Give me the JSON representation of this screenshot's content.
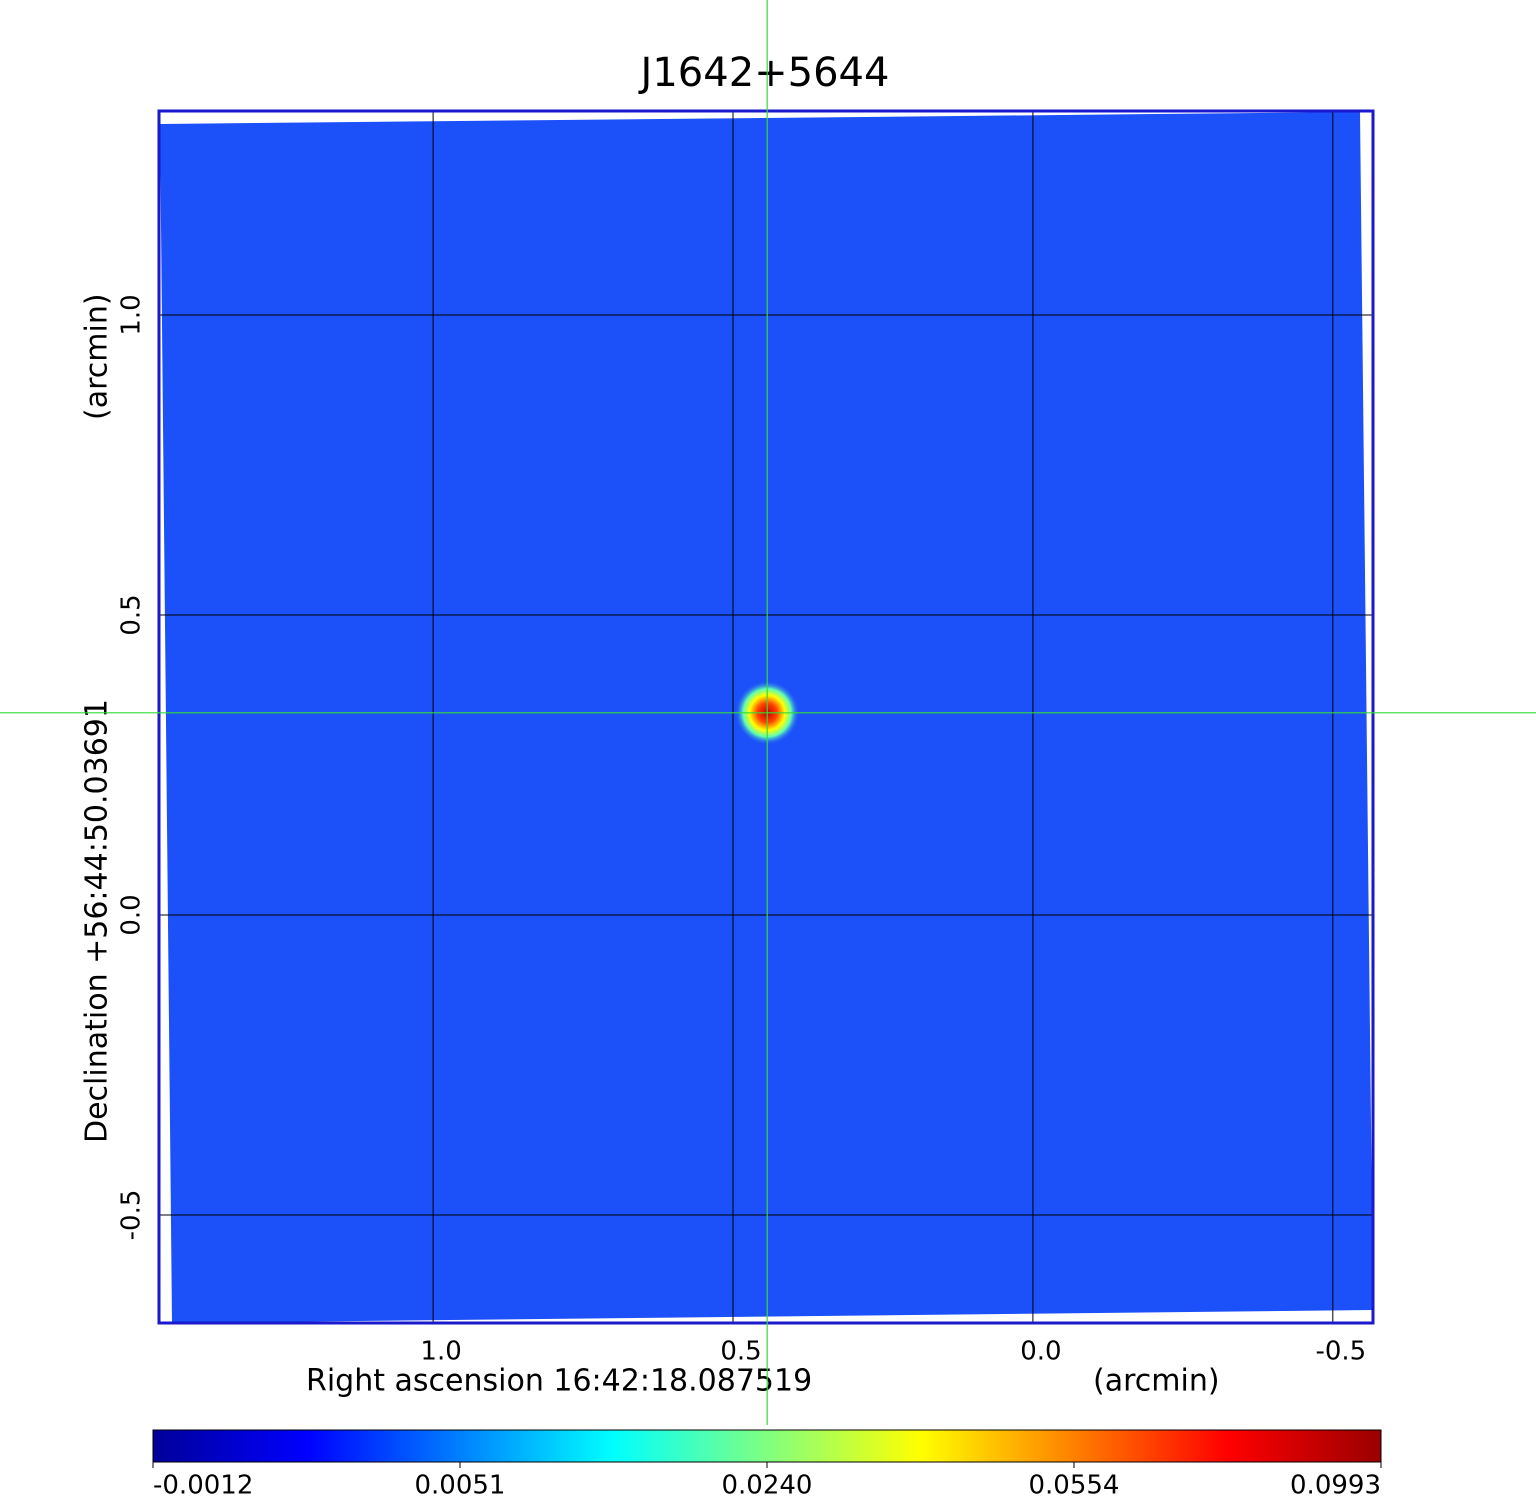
{
  "chart_data": {
    "type": "image",
    "title": "J1642+5644",
    "title_color": "#0000dd",
    "frame_color": "#1a1acc",
    "x_label": "Right ascension  16:42:18.087519",
    "x_unit": "(arcmin)",
    "y_label": "Declination  +56:44:50.03691",
    "y_unit": "(arcmin)",
    "xlim": [
      1.457,
      -0.567
    ],
    "ylim": [
      -0.68,
      1.34
    ],
    "xticks": [
      {
        "value": 1,
        "label": "1.0"
      },
      0.5,
      {
        "value": 0,
        "label": "0.0"
      },
      -0.5
    ],
    "yticks": [
      {
        "value": 1,
        "label": "1.0"
      },
      0.5,
      {
        "value": 0,
        "label": "0.0"
      },
      -0.5
    ],
    "grid": true,
    "crosshair": {
      "x": 0.443,
      "y": 0.337,
      "color": "#33dd33"
    },
    "colorbar": {
      "ticks": [
        -0.0012,
        0.0051,
        {
          "value": 0.024,
          "label": "0.0240"
        },
        0.0554,
        0.0993
      ],
      "colors": [
        "#00009a",
        "#0000ff",
        "#0080ff",
        "#00ffff",
        "#80ff80",
        "#ffff00",
        "#ff8000",
        "#ff0000",
        "#9a0000"
      ]
    }
  }
}
